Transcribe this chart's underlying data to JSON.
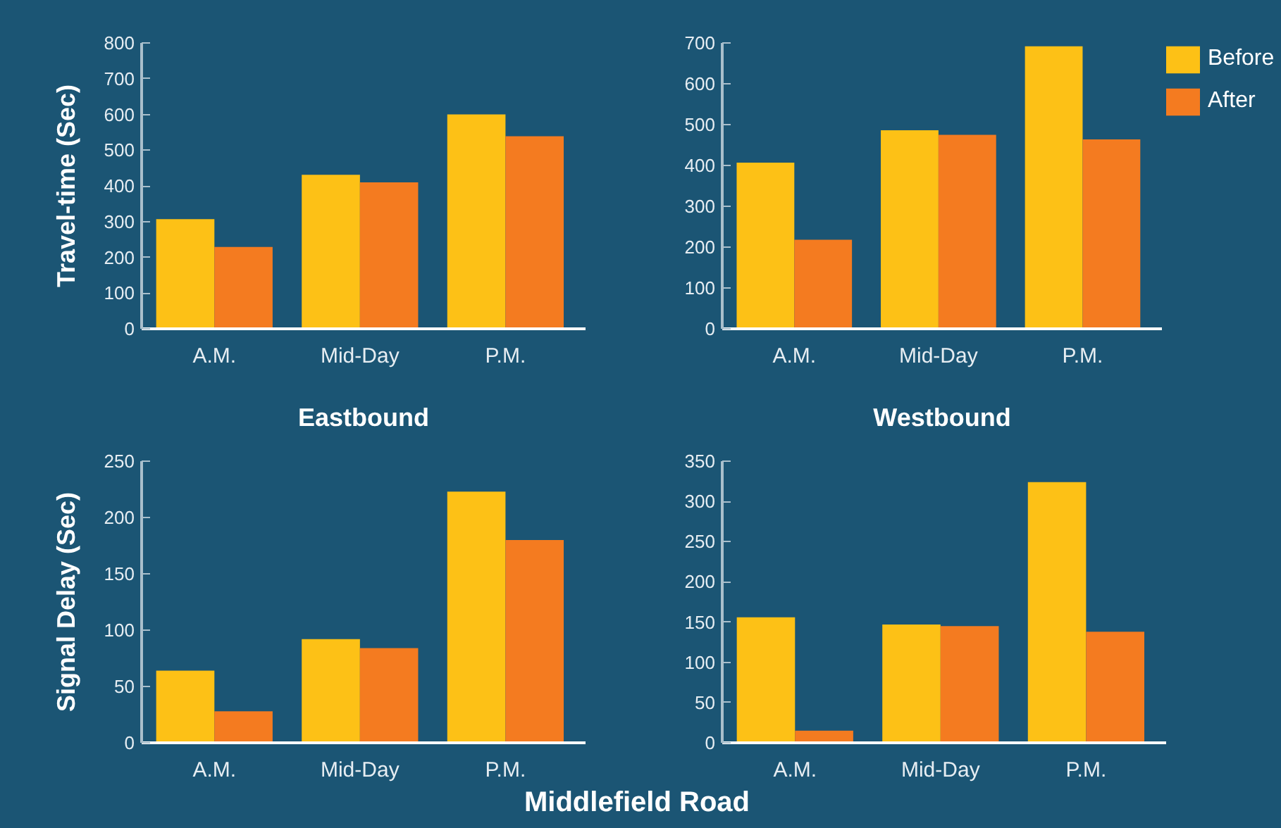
{
  "chart_data": [
    {
      "type": "bar",
      "categories": [
        "A.M.",
        "Mid-Day",
        "P.M."
      ],
      "xlabel": "Eastbound",
      "ylabel": "Travel-time (Sec)",
      "ylim": [
        0,
        800
      ],
      "yticks": [
        0,
        100,
        200,
        300,
        400,
        500,
        600,
        700,
        800
      ],
      "grid": false,
      "series": [
        {
          "color": "#fdc116",
          "values": [
            307,
            431,
            600
          ]
        },
        {
          "color": "#f47b20",
          "values": [
            229,
            410,
            539
          ]
        }
      ]
    },
    {
      "type": "bar",
      "categories": [
        "A.M.",
        "Mid-Day",
        "P.M."
      ],
      "xlabel": "Westbound",
      "ylim": [
        0,
        700
      ],
      "yticks": [
        0,
        100,
        200,
        300,
        400,
        500,
        600,
        700
      ],
      "grid": false,
      "legend": "top right",
      "series": [
        {
          "name": "Before",
          "color": "#fdc116",
          "values": [
            407,
            486,
            692
          ]
        },
        {
          "name": "After",
          "color": "#f47b20",
          "values": [
            218,
            475,
            464
          ]
        }
      ]
    },
    {
      "type": "bar",
      "categories": [
        "A.M.",
        "Mid-Day",
        "P.M."
      ],
      "ylabel": "Signal Delay (Sec)",
      "ylim": [
        0,
        250
      ],
      "yticks": [
        0,
        50,
        100,
        150,
        200,
        250
      ],
      "grid": false,
      "annotations": [
        "Middlefield Road"
      ],
      "series": [
        {
          "color": "#fdc116",
          "values": [
            64,
            92,
            223
          ]
        },
        {
          "color": "#f47b20",
          "values": [
            28,
            84,
            180
          ]
        }
      ]
    },
    {
      "type": "bar",
      "categories": [
        "A.M.",
        "Mid-Day",
        "P.M."
      ],
      "ylim": [
        0,
        350
      ],
      "yticks": [
        0,
        50,
        100,
        150,
        200,
        250,
        300,
        350
      ],
      "grid": false,
      "series": [
        {
          "color": "#fdc116",
          "values": [
            156,
            147,
            324
          ]
        },
        {
          "color": "#f47b20",
          "values": [
            15,
            145,
            138
          ]
        }
      ]
    }
  ]
}
